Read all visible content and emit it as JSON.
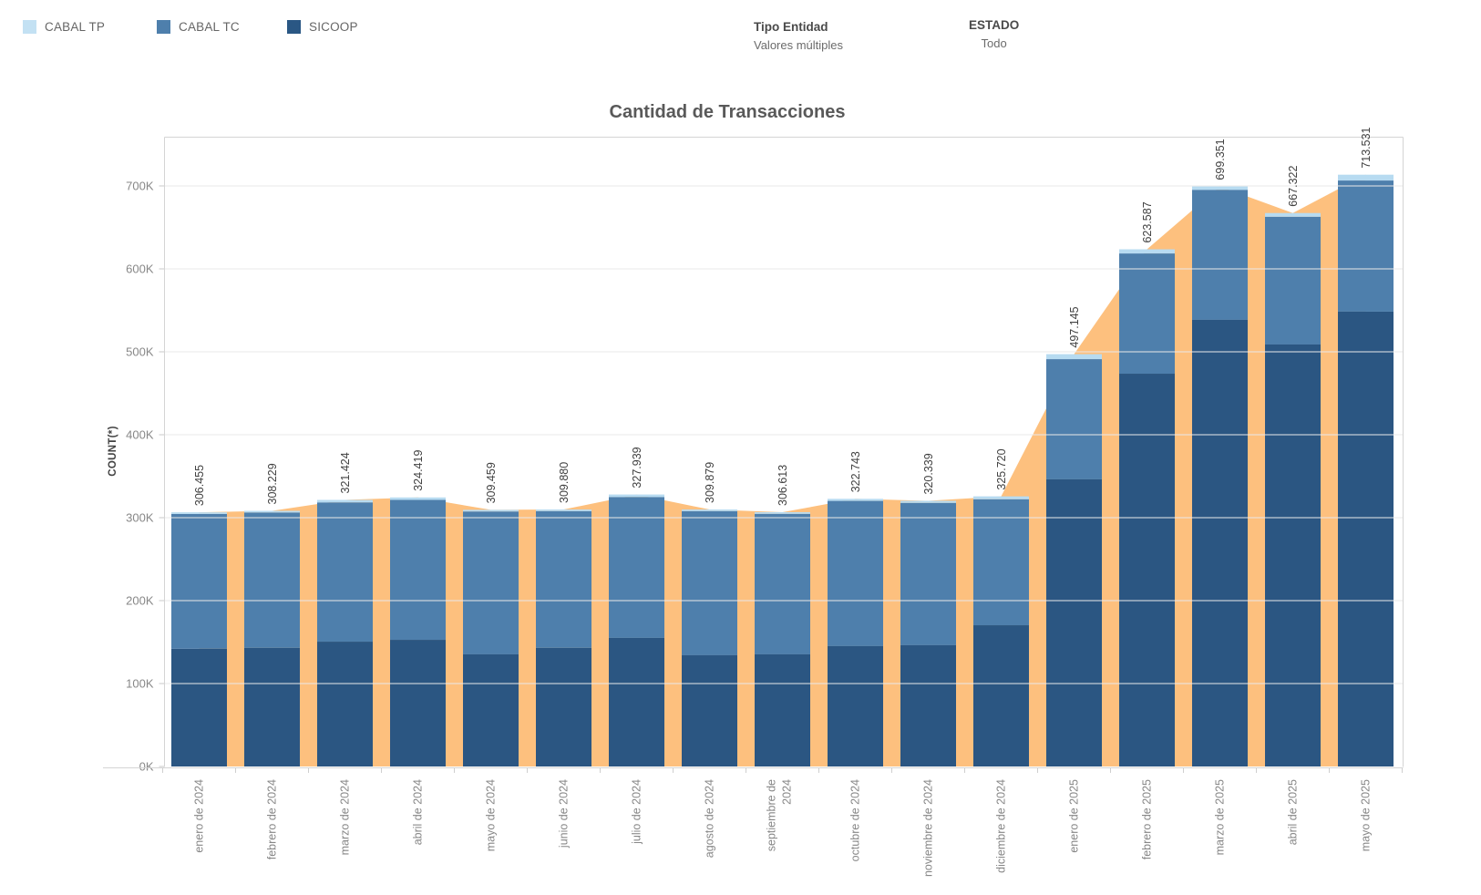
{
  "legend": {
    "items": [
      {
        "label": "CABAL TP",
        "color": "#c3e1f3"
      },
      {
        "label": "CABAL TC",
        "color": "#4e7fac"
      },
      {
        "label": "SICOOP",
        "color": "#2a5784"
      }
    ]
  },
  "filters": [
    {
      "title": "Tipo Entidad",
      "value": "Valores múltiples"
    },
    {
      "title": "ESTADO",
      "value": "Todo"
    }
  ],
  "chart_data": {
    "type": "bar",
    "subtype": "stacked-bars-with-area-behind",
    "title": "Cantidad de Transacciones",
    "ylabel": "COUNT(*)",
    "xlabel": "",
    "ylim": [
      0,
      760000
    ],
    "grid": true,
    "legend_position": "top-left",
    "y_tick_labels": [
      "0K",
      "100K",
      "200K",
      "300K",
      "400K",
      "500K",
      "600K",
      "700K"
    ],
    "y_tick_values": [
      0,
      100000,
      200000,
      300000,
      400000,
      500000,
      600000,
      700000
    ],
    "categories": [
      "enero de 2024",
      "febrero de 2024",
      "marzo de 2024",
      "abril de 2024",
      "mayo de 2024",
      "junio de 2024",
      "julio de 2024",
      "agosto de 2024",
      "septiembre de 2024",
      "octubre de 2024",
      "noviembre de 2024",
      "diciembre de 2024",
      "enero de 2025",
      "febrero de 2025",
      "marzo de 2025",
      "abril de 2025",
      "mayo de 2025"
    ],
    "series": [
      {
        "name": "SICOOP",
        "color": "#2b5682",
        "values": [
          142000,
          143000,
          150500,
          152700,
          135200,
          143000,
          155000,
          134100,
          135200,
          145100,
          146200,
          170300,
          346200,
          473600,
          538500,
          508800,
          548400
        ]
      },
      {
        "name": "CABAL TC",
        "color": "#4e7fac",
        "values": [
          162455,
          163229,
          167924,
          168719,
          172259,
          164880,
          169939,
          173779,
          169413,
          175143,
          171639,
          151920,
          144945,
          144987,
          156851,
          154022,
          158131
        ]
      },
      {
        "name": "CABAL TP",
        "color": "#b7dbf1",
        "values": [
          2000,
          2000,
          3000,
          3000,
          2000,
          2000,
          3000,
          2000,
          2000,
          2500,
          2500,
          3500,
          6000,
          5000,
          4000,
          4500,
          7000
        ]
      }
    ],
    "totals": [
      306455,
      308229,
      321424,
      324419,
      309459,
      309880,
      327939,
      309879,
      306613,
      322743,
      320339,
      325720,
      497145,
      623587,
      699351,
      667322,
      713531
    ],
    "total_labels": [
      "306.455",
      "308.229",
      "321.424",
      "324.419",
      "309.459",
      "309.880",
      "327.939",
      "309.879",
      "306.613",
      "322.743",
      "320.339",
      "325.720",
      "497.145",
      "623.587",
      "699.351",
      "667.322",
      "713.531"
    ],
    "area_color": "#fdc07e"
  }
}
